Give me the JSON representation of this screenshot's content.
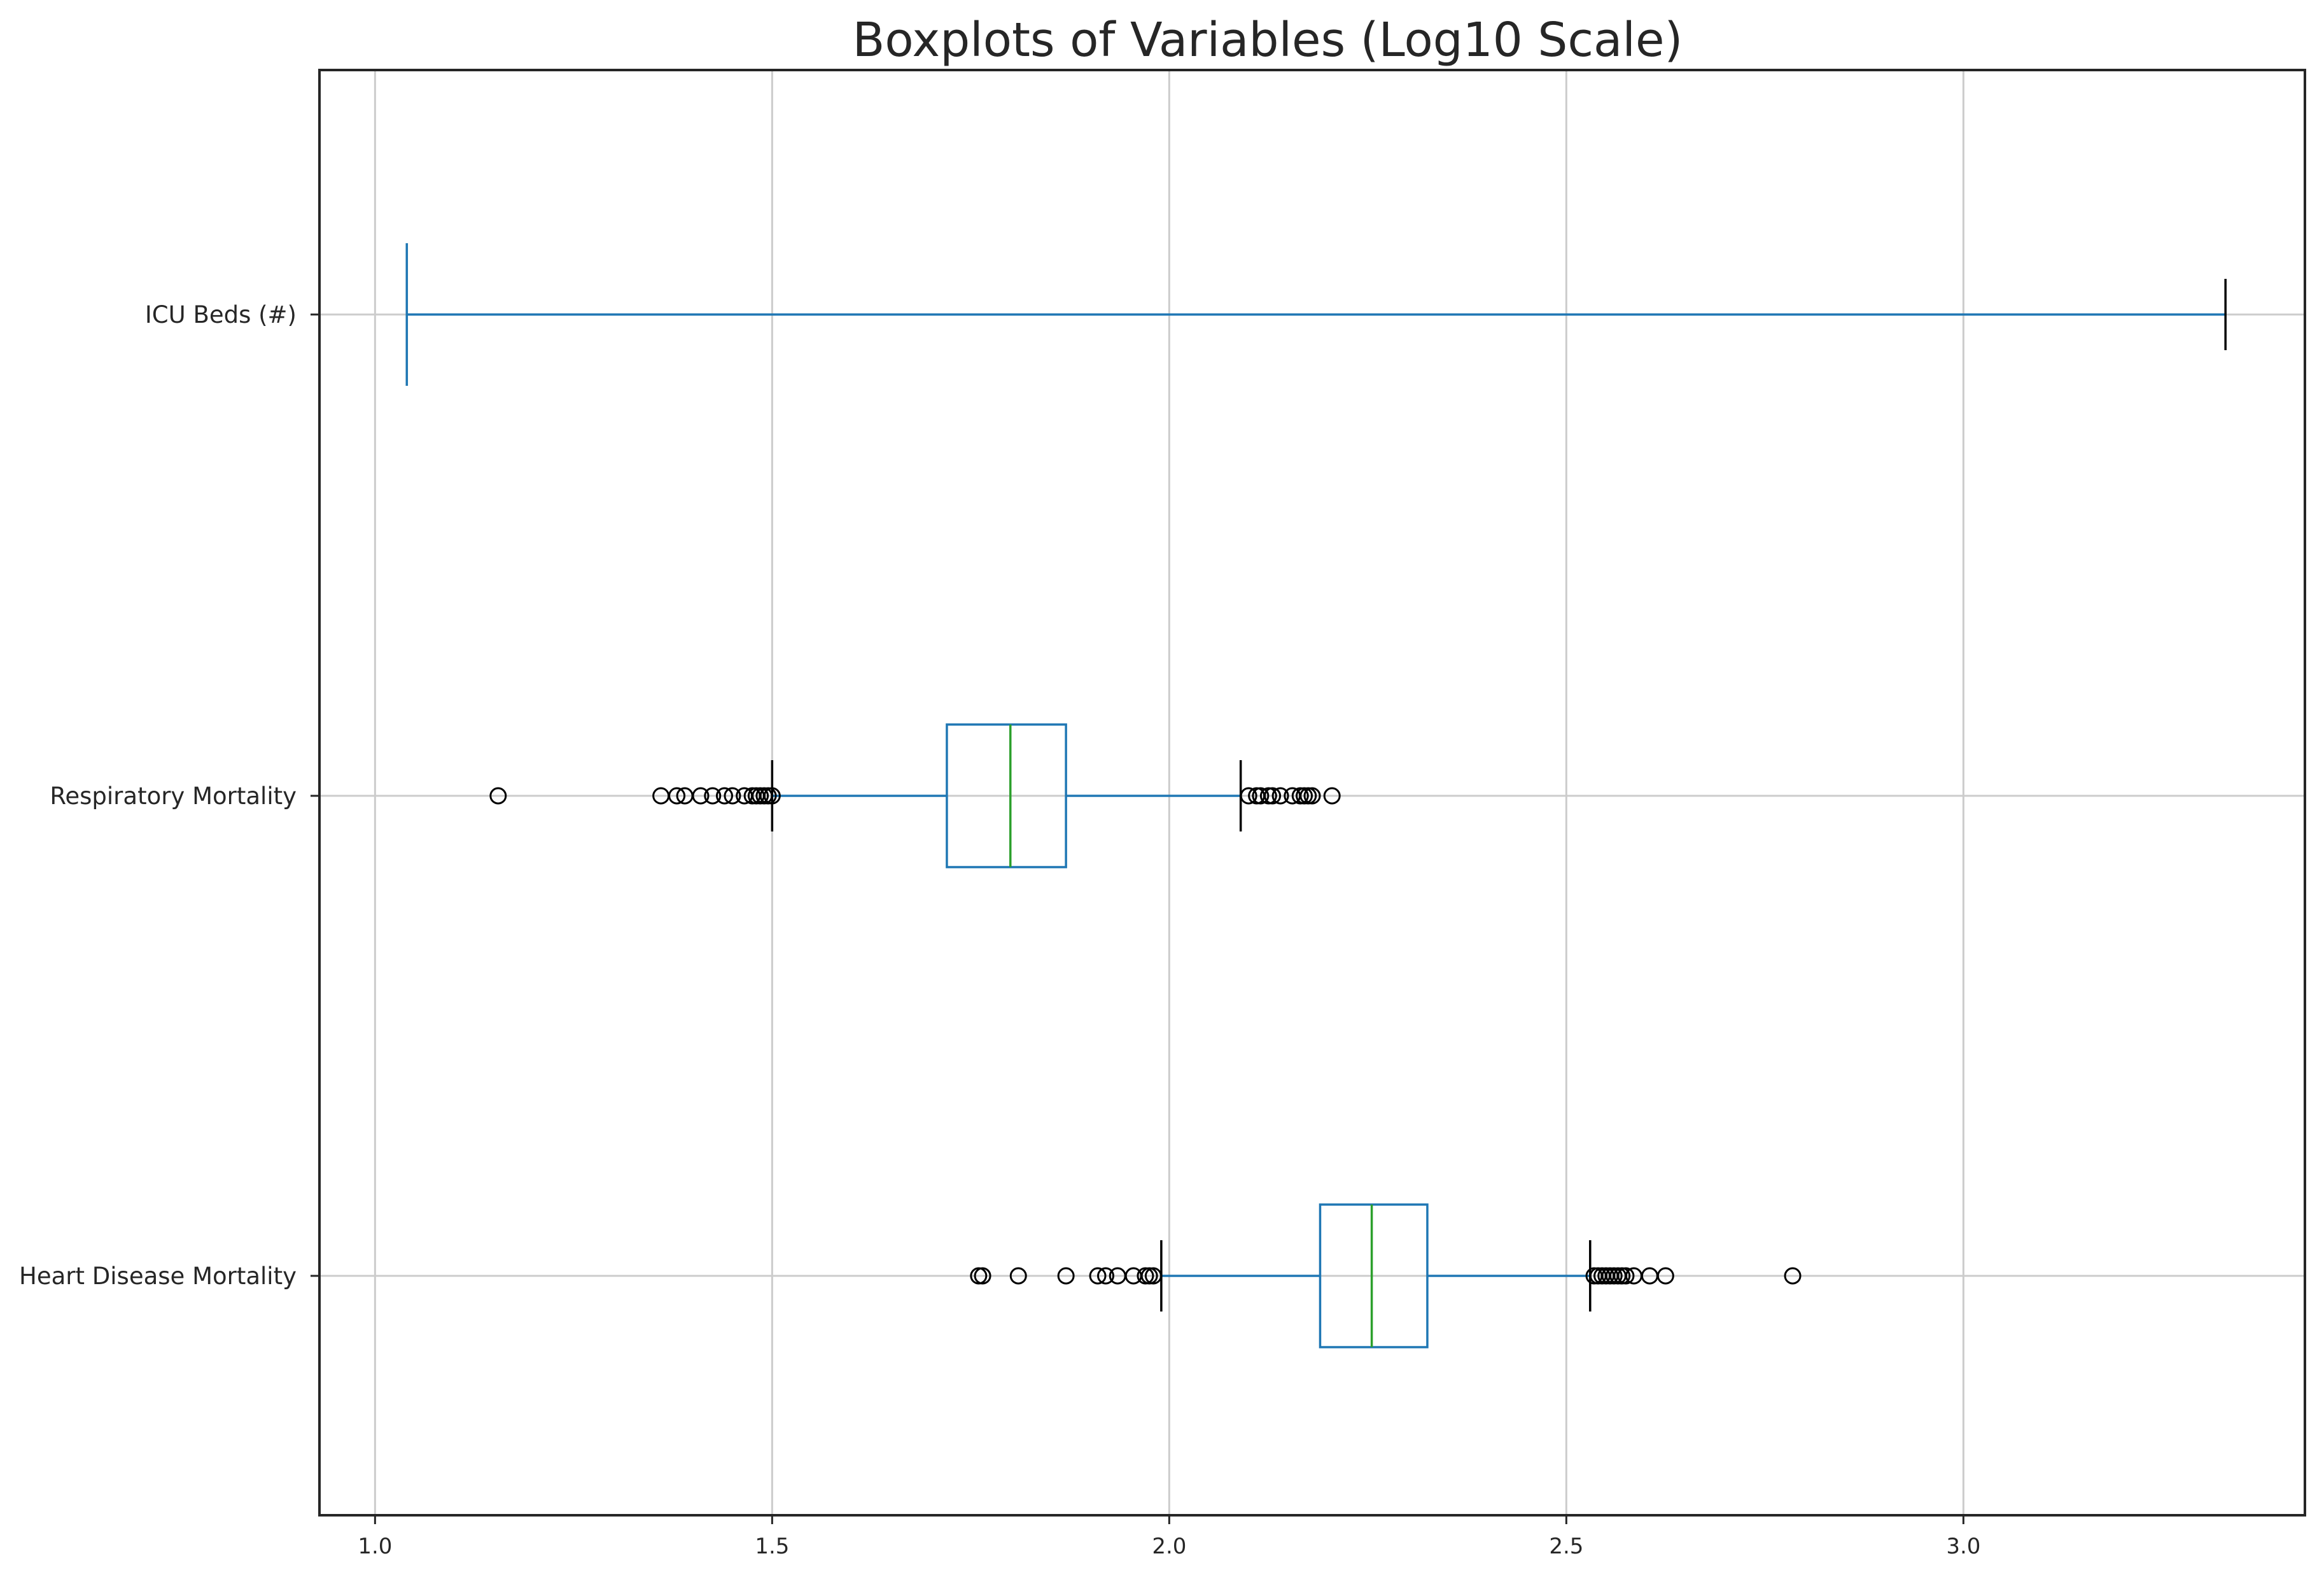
{
  "chart_data": {
    "type": "boxplot",
    "orientation": "horizontal",
    "title": "Boxplots of Variables (Log10 Scale)",
    "xlabel": "",
    "ylabel": "",
    "xlim": [
      0.93,
      3.43
    ],
    "xticks": [
      1.0,
      1.5,
      2.0,
      2.5,
      3.0
    ],
    "xtick_labels": [
      "1.0",
      "1.5",
      "2.0",
      "2.5",
      "3.0"
    ],
    "grid": true,
    "colors": {
      "box": "#1f77b4",
      "median": "#2ca02c",
      "cap": "#000000",
      "flier": "#000000",
      "grid": "#cccccc",
      "frame": "#262626"
    },
    "boxes": [
      {
        "label": "ICU Beds (#)",
        "q1": 1.04,
        "median": 1.04,
        "q3": 1.04,
        "whisker_low": 1.04,
        "whisker_high": 3.33,
        "fliers": []
      },
      {
        "label": "Respiratory Mortality",
        "q1": 1.72,
        "median": 1.8,
        "q3": 1.87,
        "whisker_low": 1.5,
        "whisker_high": 2.09,
        "fliers": [
          1.155,
          1.36,
          1.38,
          1.39,
          1.41,
          1.425,
          1.44,
          1.45,
          1.465,
          1.475,
          1.48,
          1.485,
          1.49,
          1.495,
          1.5,
          2.1,
          2.11,
          2.115,
          2.125,
          2.13,
          2.14,
          2.155,
          2.165,
          2.17,
          2.175,
          2.18,
          2.205
        ]
      },
      {
        "label": "Heart Disease Mortality",
        "q1": 2.19,
        "median": 2.255,
        "q3": 2.325,
        "whisker_low": 1.99,
        "whisker_high": 2.53,
        "fliers": [
          1.76,
          1.765,
          1.81,
          1.87,
          1.91,
          1.92,
          1.935,
          1.955,
          1.97,
          1.975,
          1.98,
          2.535,
          2.54,
          2.545,
          2.55,
          2.555,
          2.56,
          2.565,
          2.57,
          2.575,
          2.585,
          2.605,
          2.625,
          2.785
        ]
      }
    ]
  }
}
